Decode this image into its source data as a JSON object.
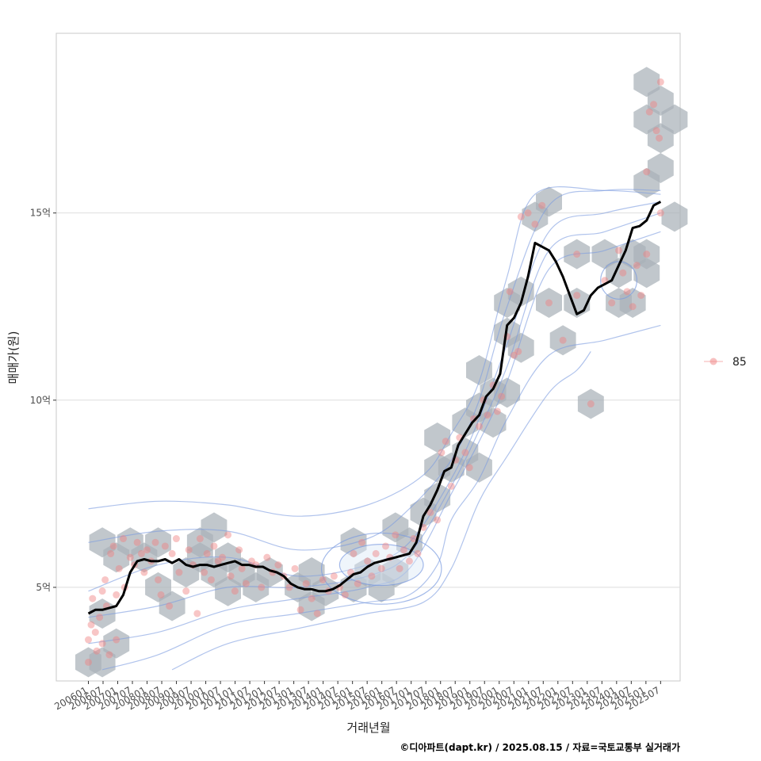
{
  "chart_data": {
    "type": "scatter",
    "xlabel": "거래년월",
    "ylabel": "매매가(원)",
    "caption": "©디아파트(dapt.kr) / 2025.08.15 / 자료=국토교통부 실거래가",
    "x_ticks": [
      "200601",
      "200607",
      "200701",
      "200707",
      "200801",
      "200807",
      "200901",
      "200907",
      "201001",
      "201007",
      "201101",
      "201107",
      "201201",
      "201207",
      "201301",
      "201307",
      "201401",
      "201407",
      "201501",
      "201507",
      "201601",
      "201607",
      "201701",
      "201707",
      "201801",
      "201807",
      "201901",
      "201907",
      "202001",
      "202007",
      "202101",
      "202107",
      "202201",
      "202207",
      "202301",
      "202307",
      "202401",
      "202407",
      "202501",
      "202507"
    ],
    "y_ticks": [
      {
        "value": 5,
        "label": "5억"
      },
      {
        "value": 10,
        "label": "10억"
      },
      {
        "value": 15,
        "label": "15억"
      }
    ],
    "ylim": [
      2.5,
      19.8
    ],
    "xlim": [
      -2.3,
      42.4
    ],
    "grid": "horizontal",
    "legend": {
      "position": "right",
      "entries": [
        {
          "label": "85",
          "color": "#f08080"
        }
      ]
    },
    "colors": {
      "points": "#f08080",
      "hex": "#a9b1b8",
      "contour": "#7b9be0",
      "trend": "#000000"
    },
    "trend_line": [
      [
        0,
        4.3
      ],
      [
        0.5,
        4.4
      ],
      [
        1,
        4.4
      ],
      [
        1.5,
        4.45
      ],
      [
        2,
        4.5
      ],
      [
        2.5,
        4.8
      ],
      [
        3,
        5.4
      ],
      [
        3.5,
        5.7
      ],
      [
        4,
        5.75
      ],
      [
        4.5,
        5.7
      ],
      [
        5,
        5.7
      ],
      [
        5.5,
        5.75
      ],
      [
        6,
        5.65
      ],
      [
        6.5,
        5.75
      ],
      [
        7,
        5.6
      ],
      [
        7.5,
        5.55
      ],
      [
        8,
        5.6
      ],
      [
        8.5,
        5.6
      ],
      [
        9,
        5.55
      ],
      [
        9.5,
        5.6
      ],
      [
        10,
        5.65
      ],
      [
        10.5,
        5.7
      ],
      [
        11,
        5.6
      ],
      [
        11.5,
        5.6
      ],
      [
        12,
        5.55
      ],
      [
        12.5,
        5.55
      ],
      [
        13,
        5.45
      ],
      [
        13.5,
        5.4
      ],
      [
        14,
        5.3
      ],
      [
        14.5,
        5.1
      ],
      [
        15,
        5.0
      ],
      [
        15.5,
        4.95
      ],
      [
        16,
        4.95
      ],
      [
        16.5,
        4.9
      ],
      [
        17,
        4.9
      ],
      [
        17.5,
        4.95
      ],
      [
        18,
        5.05
      ],
      [
        18.5,
        5.2
      ],
      [
        19,
        5.35
      ],
      [
        19.5,
        5.4
      ],
      [
        20,
        5.55
      ],
      [
        20.5,
        5.65
      ],
      [
        21,
        5.7
      ],
      [
        21.5,
        5.75
      ],
      [
        22,
        5.8
      ],
      [
        22.5,
        5.85
      ],
      [
        23,
        5.9
      ],
      [
        23.5,
        6.2
      ],
      [
        24,
        6.9
      ],
      [
        24.5,
        7.2
      ],
      [
        25,
        7.6
      ],
      [
        25.5,
        8.1
      ],
      [
        26,
        8.2
      ],
      [
        26.5,
        8.8
      ],
      [
        27,
        9.1
      ],
      [
        27.5,
        9.4
      ],
      [
        28,
        9.6
      ],
      [
        28.5,
        10.1
      ],
      [
        29,
        10.3
      ],
      [
        29.5,
        10.7
      ],
      [
        30,
        12.0
      ],
      [
        30.5,
        12.2
      ],
      [
        31,
        12.6
      ],
      [
        31.5,
        13.3
      ],
      [
        32,
        14.2
      ],
      [
        32.5,
        14.1
      ],
      [
        33,
        14.0
      ],
      [
        33.5,
        13.7
      ],
      [
        34,
        13.3
      ],
      [
        34.5,
        12.8
      ],
      [
        35,
        12.3
      ],
      [
        35.5,
        12.4
      ],
      [
        36,
        12.8
      ],
      [
        36.5,
        13.0
      ],
      [
        37,
        13.1
      ],
      [
        37.5,
        13.2
      ],
      [
        38,
        13.6
      ],
      [
        38.5,
        14.0
      ],
      [
        39,
        14.6
      ],
      [
        39.5,
        14.65
      ],
      [
        40,
        14.8
      ],
      [
        40.5,
        15.2
      ],
      [
        41,
        15.3
      ]
    ],
    "points": [
      [
        0,
        3.0
      ],
      [
        0,
        3.6
      ],
      [
        0.2,
        4.0
      ],
      [
        0.3,
        4.7
      ],
      [
        0.5,
        3.8
      ],
      [
        0.6,
        3.3
      ],
      [
        0.8,
        4.2
      ],
      [
        1,
        3.5
      ],
      [
        1,
        4.9
      ],
      [
        1.2,
        5.2
      ],
      [
        1.3,
        4.5
      ],
      [
        1.5,
        3.2
      ],
      [
        1.6,
        5.9
      ],
      [
        1.8,
        6.1
      ],
      [
        2,
        4.8
      ],
      [
        2,
        3.6
      ],
      [
        2.2,
        5.5
      ],
      [
        2.5,
        6.3
      ],
      [
        2.6,
        5.0
      ],
      [
        3,
        5.8
      ],
      [
        3.3,
        5.6
      ],
      [
        3.5,
        6.2
      ],
      [
        3.8,
        5.9
      ],
      [
        4,
        5.4
      ],
      [
        4.2,
        6.0
      ],
      [
        4.5,
        5.7
      ],
      [
        4.8,
        6.2
      ],
      [
        5,
        5.2
      ],
      [
        5.2,
        4.8
      ],
      [
        5.5,
        6.1
      ],
      [
        5.8,
        4.5
      ],
      [
        6,
        5.9
      ],
      [
        6.3,
        6.3
      ],
      [
        6.5,
        5.4
      ],
      [
        7,
        4.9
      ],
      [
        7.2,
        6.0
      ],
      [
        7.5,
        5.6
      ],
      [
        7.8,
        4.3
      ],
      [
        8,
        6.3
      ],
      [
        8.3,
        5.4
      ],
      [
        8.5,
        5.9
      ],
      [
        8.8,
        5.2
      ],
      [
        9,
        6.1
      ],
      [
        9.3,
        5.7
      ],
      [
        9.6,
        5.8
      ],
      [
        10,
        6.4
      ],
      [
        10.2,
        5.3
      ],
      [
        10.5,
        4.9
      ],
      [
        10.8,
        6.0
      ],
      [
        11,
        5.5
      ],
      [
        11.3,
        5.1
      ],
      [
        11.7,
        5.7
      ],
      [
        12,
        5.6
      ],
      [
        12.4,
        5.0
      ],
      [
        12.8,
        5.8
      ],
      [
        13.2,
        5.4
      ],
      [
        13.6,
        5.6
      ],
      [
        14,
        5.3
      ],
      [
        14.4,
        5.0
      ],
      [
        14.8,
        5.5
      ],
      [
        15.2,
        4.4
      ],
      [
        15.6,
        5.1
      ],
      [
        16,
        4.7
      ],
      [
        16.4,
        4.3
      ],
      [
        16.8,
        5.2
      ],
      [
        17.2,
        4.9
      ],
      [
        17.6,
        5.3
      ],
      [
        18,
        5.0
      ],
      [
        18.4,
        4.8
      ],
      [
        18.8,
        5.4
      ],
      [
        19,
        5.9
      ],
      [
        19.3,
        5.1
      ],
      [
        19.6,
        6.2
      ],
      [
        20,
        5.7
      ],
      [
        20.3,
        5.3
      ],
      [
        20.6,
        5.9
      ],
      [
        21,
        5.5
      ],
      [
        21.3,
        6.1
      ],
      [
        21.6,
        5.8
      ],
      [
        22,
        6.4
      ],
      [
        22.3,
        5.5
      ],
      [
        22.6,
        6.0
      ],
      [
        23,
        5.7
      ],
      [
        23.3,
        6.3
      ],
      [
        23.6,
        5.9
      ],
      [
        24,
        6.6
      ],
      [
        24.5,
        7.0
      ],
      [
        25,
        6.8
      ],
      [
        25.3,
        8.6
      ],
      [
        25.6,
        8.9
      ],
      [
        26,
        7.7
      ],
      [
        26.3,
        8.4
      ],
      [
        26.6,
        9.0
      ],
      [
        27,
        8.6
      ],
      [
        27.3,
        8.2
      ],
      [
        27.6,
        9.5
      ],
      [
        28,
        9.3
      ],
      [
        28.3,
        10.0
      ],
      [
        28.6,
        9.6
      ],
      [
        29,
        10.4
      ],
      [
        29.3,
        9.7
      ],
      [
        29.6,
        10.1
      ],
      [
        30,
        11.7
      ],
      [
        30.2,
        12.9
      ],
      [
        30.5,
        11.2
      ],
      [
        30.8,
        11.3
      ],
      [
        31,
        14.9
      ],
      [
        31.5,
        15.0
      ],
      [
        32,
        14.7
      ],
      [
        32.5,
        15.2
      ],
      [
        33,
        12.6
      ],
      [
        34,
        11.6
      ],
      [
        35,
        13.9
      ],
      [
        35,
        12.8
      ],
      [
        36,
        9.9
      ],
      [
        37,
        13.2
      ],
      [
        37.5,
        12.6
      ],
      [
        38,
        14.0
      ],
      [
        38.3,
        13.4
      ],
      [
        38.6,
        12.9
      ],
      [
        39,
        12.5
      ],
      [
        39.3,
        13.6
      ],
      [
        39.6,
        12.8
      ],
      [
        40,
        13.9
      ],
      [
        40,
        16.1
      ],
      [
        40.2,
        17.7
      ],
      [
        40.5,
        17.9
      ],
      [
        40.7,
        17.2
      ],
      [
        40.9,
        17.0
      ],
      [
        41,
        18.5
      ],
      [
        41,
        15.0
      ]
    ],
    "hex_bins": [
      [
        0,
        3.0
      ],
      [
        1,
        3.0
      ],
      [
        1,
        4.3
      ],
      [
        2,
        3.5
      ],
      [
        1,
        6.2
      ],
      [
        2,
        5.8
      ],
      [
        3,
        6.2
      ],
      [
        4,
        5.8
      ],
      [
        5,
        6.2
      ],
      [
        5,
        5.0
      ],
      [
        6,
        4.5
      ],
      [
        7,
        5.4
      ],
      [
        8,
        5.8
      ],
      [
        8,
        6.2
      ],
      [
        9,
        5.4
      ],
      [
        9,
        6.6
      ],
      [
        10,
        5.8
      ],
      [
        10,
        4.9
      ],
      [
        11,
        5.4
      ],
      [
        12,
        5.0
      ],
      [
        13,
        5.4
      ],
      [
        15,
        5.0
      ],
      [
        16,
        4.5
      ],
      [
        16,
        5.4
      ],
      [
        17,
        4.9
      ],
      [
        19,
        5.0
      ],
      [
        19,
        6.2
      ],
      [
        20,
        5.4
      ],
      [
        21,
        5.0
      ],
      [
        22,
        5.4
      ],
      [
        22,
        6.6
      ],
      [
        23,
        6.2
      ],
      [
        24,
        7.0
      ],
      [
        25,
        7.4
      ],
      [
        25,
        8.2
      ],
      [
        25,
        9.0
      ],
      [
        26,
        8.2
      ],
      [
        27,
        8.6
      ],
      [
        27,
        9.4
      ],
      [
        28,
        8.2
      ],
      [
        28,
        9.8
      ],
      [
        28,
        10.8
      ],
      [
        29,
        10.2
      ],
      [
        29,
        9.4
      ],
      [
        30,
        10.2
      ],
      [
        30,
        11.8
      ],
      [
        30,
        12.6
      ],
      [
        31,
        11.4
      ],
      [
        31,
        12.9
      ],
      [
        32,
        14.9
      ],
      [
        33,
        15.3
      ],
      [
        33,
        12.6
      ],
      [
        34,
        11.6
      ],
      [
        35,
        13.9
      ],
      [
        35,
        12.6
      ],
      [
        36,
        9.9
      ],
      [
        37,
        13.9
      ],
      [
        38,
        13.4
      ],
      [
        38,
        12.6
      ],
      [
        39,
        13.9
      ],
      [
        39,
        12.6
      ],
      [
        40,
        13.9
      ],
      [
        40,
        13.4
      ],
      [
        40,
        15.8
      ],
      [
        41,
        16.2
      ],
      [
        40,
        18.5
      ],
      [
        41,
        18.0
      ],
      [
        41,
        17.0
      ],
      [
        42,
        17.5
      ],
      [
        40,
        17.5
      ],
      [
        42,
        14.9
      ]
    ],
    "contours": [
      [
        [
          0,
          3.5
        ],
        [
          5,
          3.8
        ],
        [
          10,
          4.4
        ],
        [
          15,
          4.7
        ],
        [
          20,
          5.0
        ],
        [
          23,
          5.5
        ],
        [
          26,
          7.5
        ],
        [
          28,
          8.9
        ],
        [
          30,
          10.5
        ],
        [
          33,
          13.5
        ],
        [
          37,
          14.0
        ],
        [
          41,
          14.5
        ]
      ],
      [
        [
          0,
          4.2
        ],
        [
          5,
          4.5
        ],
        [
          10,
          5.0
        ],
        [
          15,
          5.0
        ],
        [
          20,
          5.3
        ],
        [
          23,
          5.9
        ],
        [
          26,
          7.7
        ],
        [
          28,
          9.2
        ],
        [
          30,
          10.9
        ],
        [
          33,
          14.0
        ],
        [
          37,
          14.5
        ],
        [
          41,
          15.0
        ]
      ],
      [
        [
          0,
          4.9
        ],
        [
          5,
          5.6
        ],
        [
          10,
          5.8
        ],
        [
          15,
          5.3
        ],
        [
          20,
          5.6
        ],
        [
          23,
          6.2
        ],
        [
          26,
          7.9
        ],
        [
          28,
          9.5
        ],
        [
          30,
          11.5
        ],
        [
          33,
          14.5
        ],
        [
          37,
          15.0
        ],
        [
          41,
          15.3
        ]
      ],
      [
        [
          0,
          6.2
        ],
        [
          5,
          6.5
        ],
        [
          10,
          6.5
        ],
        [
          15,
          6.0
        ],
        [
          20,
          6.3
        ],
        [
          23,
          7.1
        ],
        [
          26,
          8.4
        ],
        [
          28,
          10.0
        ],
        [
          30,
          12.5
        ],
        [
          33,
          15.2
        ],
        [
          37,
          15.6
        ],
        [
          41,
          15.6
        ]
      ],
      [
        [
          0,
          7.1
        ],
        [
          5,
          7.3
        ],
        [
          10,
          7.2
        ],
        [
          15,
          6.9
        ],
        [
          20,
          7.2
        ],
        [
          24,
          8.0
        ],
        [
          26,
          9.1
        ],
        [
          28,
          10.5
        ],
        [
          30,
          13.3
        ],
        [
          32,
          15.5
        ],
        [
          37,
          15.6
        ],
        [
          41,
          15.5
        ]
      ],
      [
        [
          1,
          2.8
        ],
        [
          5,
          3.2
        ],
        [
          10,
          4.0
        ],
        [
          15,
          4.3
        ],
        [
          20,
          4.6
        ],
        [
          23,
          4.8
        ],
        [
          25,
          5.6
        ],
        [
          26,
          6.8
        ],
        [
          28,
          7.9
        ],
        [
          30,
          9.5
        ],
        [
          33,
          11.2
        ],
        [
          37,
          11.6
        ],
        [
          41,
          12.0
        ]
      ],
      [
        [
          6,
          2.8
        ],
        [
          10,
          3.5
        ],
        [
          15,
          3.9
        ],
        [
          20,
          4.3
        ],
        [
          24,
          4.6
        ],
        [
          26,
          5.5
        ],
        [
          28,
          7.3
        ],
        [
          30,
          8.5
        ],
        [
          33,
          10.2
        ],
        [
          35,
          10.8
        ],
        [
          36,
          11.3
        ]
      ]
    ],
    "contour_ellipses": [
      {
        "cx": 21,
        "cy": 5.6,
        "rx": 3.0,
        "ry": 0.55
      },
      {
        "cx": 21,
        "cy": 5.5,
        "rx": 4.3,
        "ry": 0.95
      },
      {
        "cx": 38,
        "cy": 13.2,
        "rx": 1.3,
        "ry": 0.5
      }
    ]
  }
}
